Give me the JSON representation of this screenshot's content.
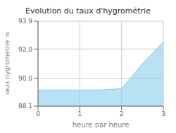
{
  "chart_data": {
    "type": "area",
    "title": "Evolution du taux d'hygrométrie",
    "xlabel": "heure par heure",
    "ylabel": "Taux hygrométrie %",
    "x": [
      0,
      0.5,
      1.0,
      1.5,
      2.0,
      2.5,
      3.0
    ],
    "values": [
      89.2,
      89.2,
      89.2,
      89.2,
      89.3,
      91.0,
      92.5
    ],
    "color": "#87CEEB",
    "xlim": [
      0,
      3
    ],
    "xticks": [
      0,
      1,
      2,
      3
    ],
    "ylim": [
      88.1,
      93.9
    ],
    "yticks": [
      88.1,
      {
        "value": 90.0,
        "label": "90.0"
      },
      {
        "value": 92.0,
        "label": "92.0"
      },
      93.9
    ],
    "grid": true
  }
}
